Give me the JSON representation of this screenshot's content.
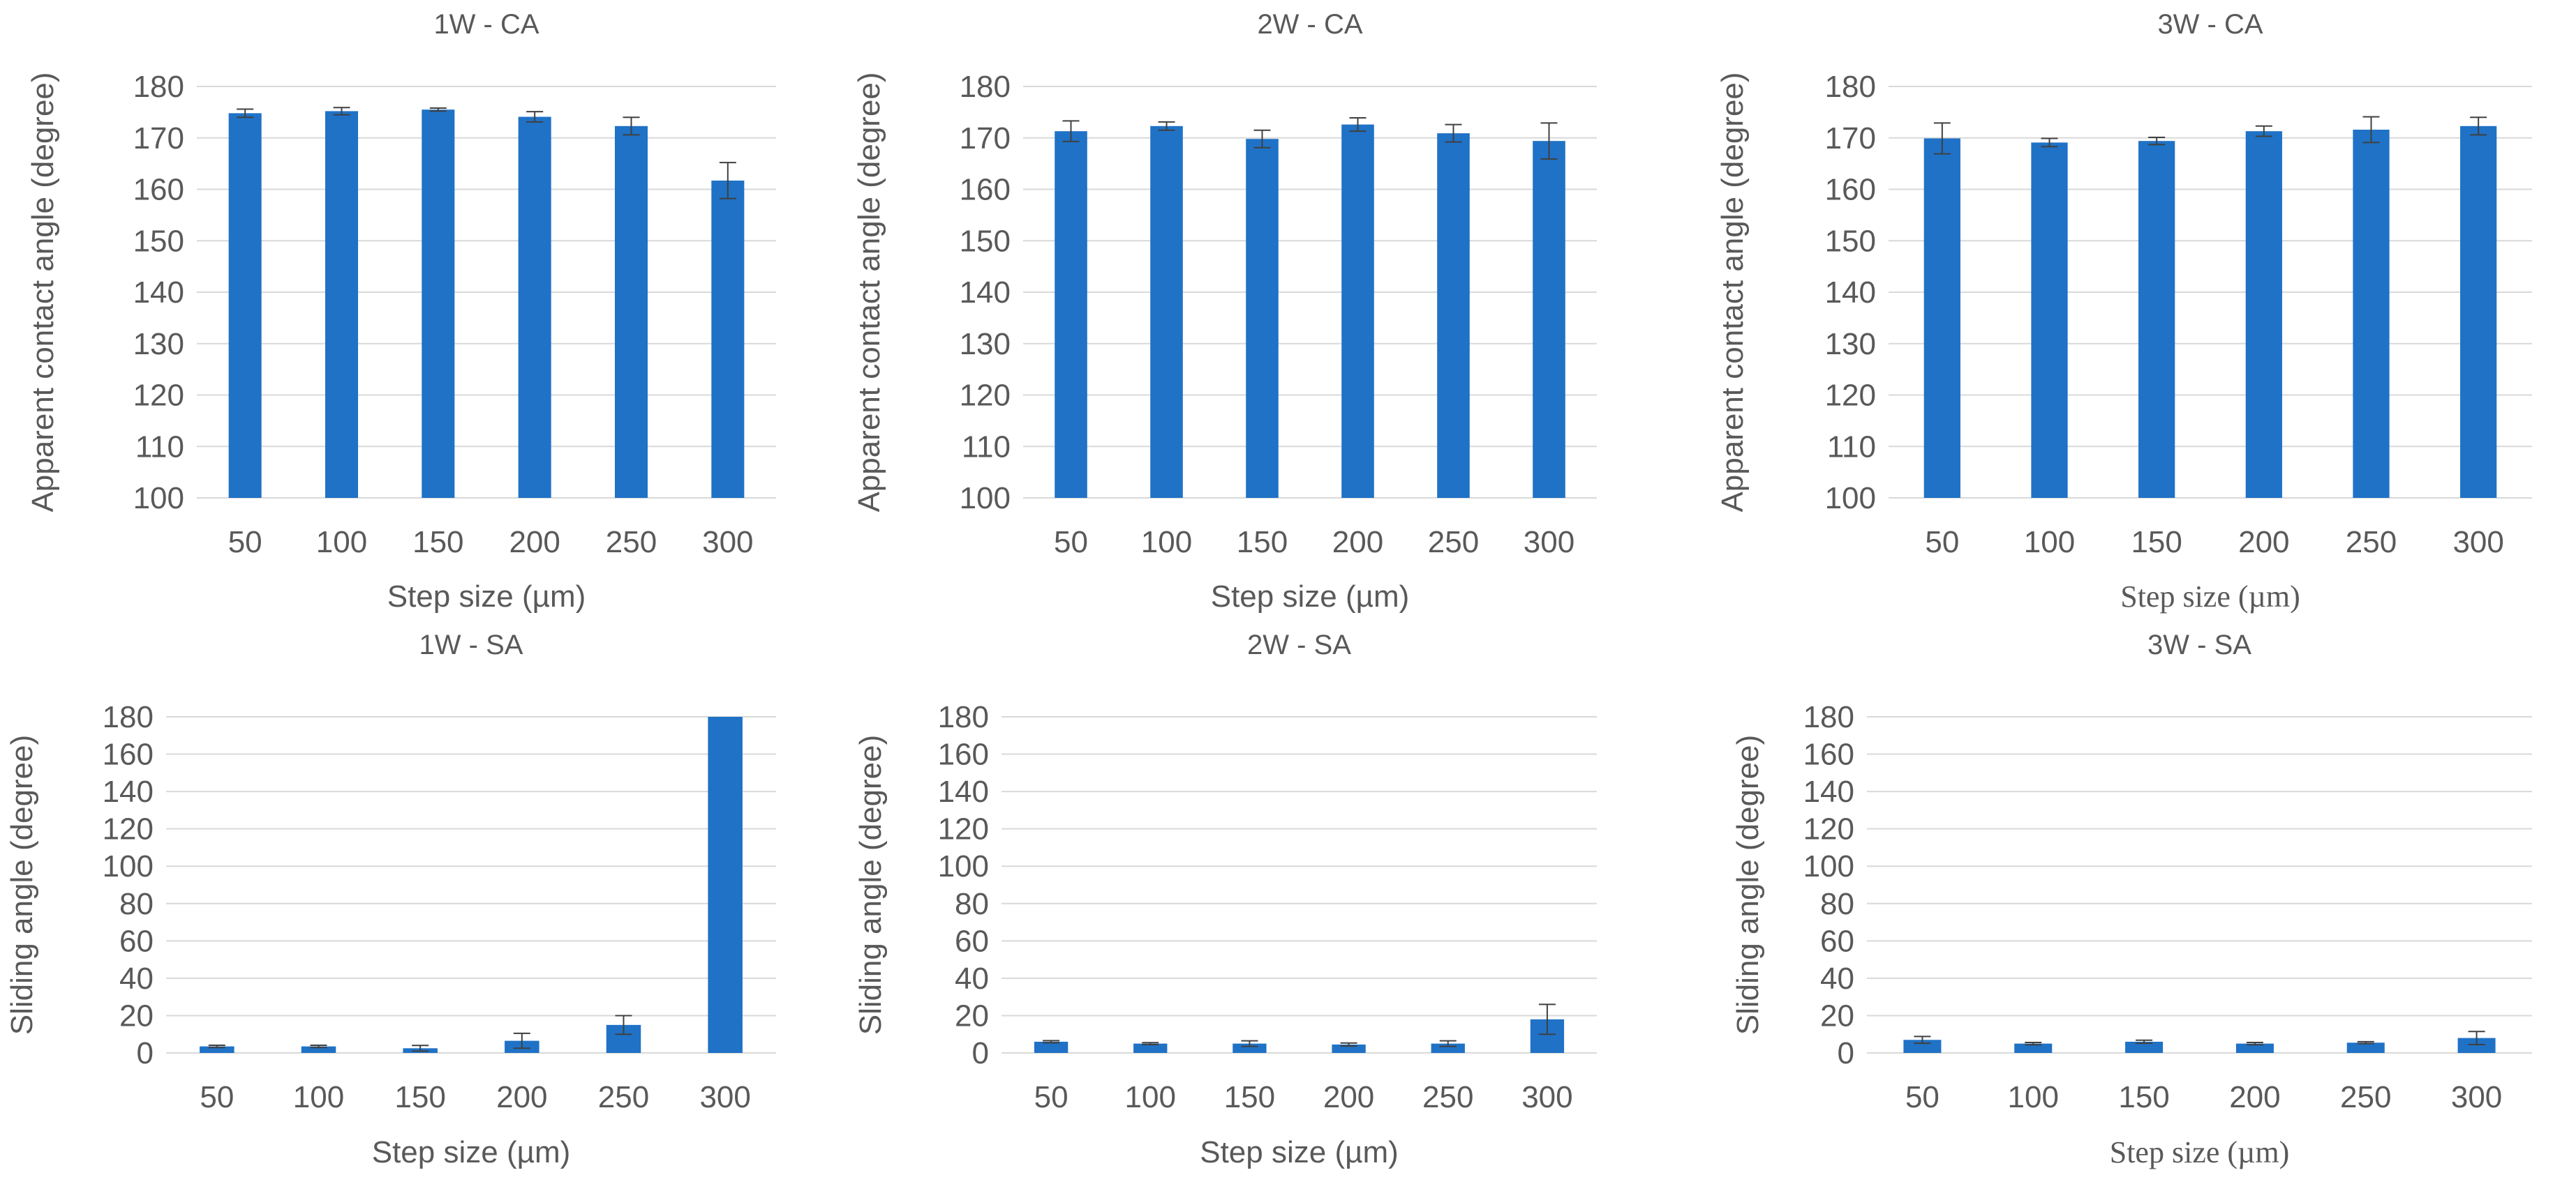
{
  "colors": {
    "bar": "#1f72c6",
    "grid": "#d9d9d9",
    "text": "#595959",
    "errorbar": "#404040"
  },
  "chart_data": [
    {
      "type": "bar",
      "title": "1W - CA",
      "xlabel": "Step size (µm)",
      "ylabel": "Apparent contact angle (degree)",
      "categories": [
        "50",
        "100",
        "150",
        "200",
        "250",
        "300"
      ],
      "values": [
        174.8,
        175.2,
        175.5,
        174.1,
        172.3,
        161.7
      ],
      "errors": [
        0.8,
        0.7,
        0.3,
        1.0,
        1.7,
        3.5
      ],
      "ylim": [
        100,
        180
      ],
      "yticks": [
        100,
        110,
        120,
        130,
        140,
        150,
        160,
        170,
        180
      ],
      "grid": true
    },
    {
      "type": "bar",
      "title": "2W - CA",
      "xlabel": "Step size (µm)",
      "ylabel": "Apparent contact angle (degree)",
      "categories": [
        "50",
        "100",
        "150",
        "200",
        "250",
        "300"
      ],
      "values": [
        171.3,
        172.3,
        169.8,
        172.6,
        170.9,
        169.4
      ],
      "errors": [
        2.0,
        0.8,
        1.7,
        1.3,
        1.7,
        3.5
      ],
      "ylim": [
        100,
        180
      ],
      "yticks": [
        100,
        110,
        120,
        130,
        140,
        150,
        160,
        170,
        180
      ],
      "grid": true
    },
    {
      "type": "bar",
      "title": "3W - CA",
      "xlabel": "Step size (µm)",
      "ylabel": "Apparent contact angle (degree)",
      "categories": [
        "50",
        "100",
        "150",
        "200",
        "250",
        "300"
      ],
      "values": [
        169.9,
        169.1,
        169.4,
        171.3,
        171.6,
        172.3
      ],
      "errors": [
        3.0,
        0.8,
        0.7,
        1.0,
        2.5,
        1.7
      ],
      "ylim": [
        100,
        180
      ],
      "yticks": [
        100,
        110,
        120,
        130,
        140,
        150,
        160,
        170,
        180
      ],
      "grid": true
    },
    {
      "type": "bar",
      "title": "1W - SA",
      "xlabel": "Step size (µm)",
      "ylabel": "Sliding angle (degree)",
      "categories": [
        "50",
        "100",
        "150",
        "200",
        "250",
        "300"
      ],
      "values": [
        3.5,
        3.5,
        2.5,
        6.5,
        15.0,
        180.0
      ],
      "errors": [
        0.6,
        0.6,
        1.5,
        4.0,
        5.0,
        0
      ],
      "ylim": [
        0,
        180
      ],
      "yticks": [
        0,
        20,
        40,
        60,
        80,
        100,
        120,
        140,
        160,
        180
      ],
      "grid": true
    },
    {
      "type": "bar",
      "title": "2W - SA",
      "xlabel": "Step size (µm)",
      "ylabel": "Sliding angle (degree)",
      "categories": [
        "50",
        "100",
        "150",
        "200",
        "250",
        "300"
      ],
      "values": [
        6.0,
        5.0,
        5.0,
        4.5,
        5.0,
        18.0
      ],
      "errors": [
        0.6,
        0.5,
        1.5,
        0.8,
        1.5,
        8.0
      ],
      "ylim": [
        0,
        180
      ],
      "yticks": [
        0,
        20,
        40,
        60,
        80,
        100,
        120,
        140,
        160,
        180
      ],
      "grid": true
    },
    {
      "type": "bar",
      "title": "3W - SA",
      "xlabel": "Step size (µm)",
      "ylabel": "Sliding angle (degree)",
      "categories": [
        "50",
        "100",
        "150",
        "200",
        "250",
        "300"
      ],
      "values": [
        7.0,
        5.0,
        6.0,
        5.0,
        5.5,
        8.0
      ],
      "errors": [
        1.8,
        0.6,
        0.8,
        0.6,
        0.5,
        3.5
      ],
      "ylim": [
        0,
        180
      ],
      "yticks": [
        0,
        20,
        40,
        60,
        80,
        100,
        120,
        140,
        160,
        180
      ],
      "grid": true
    }
  ]
}
